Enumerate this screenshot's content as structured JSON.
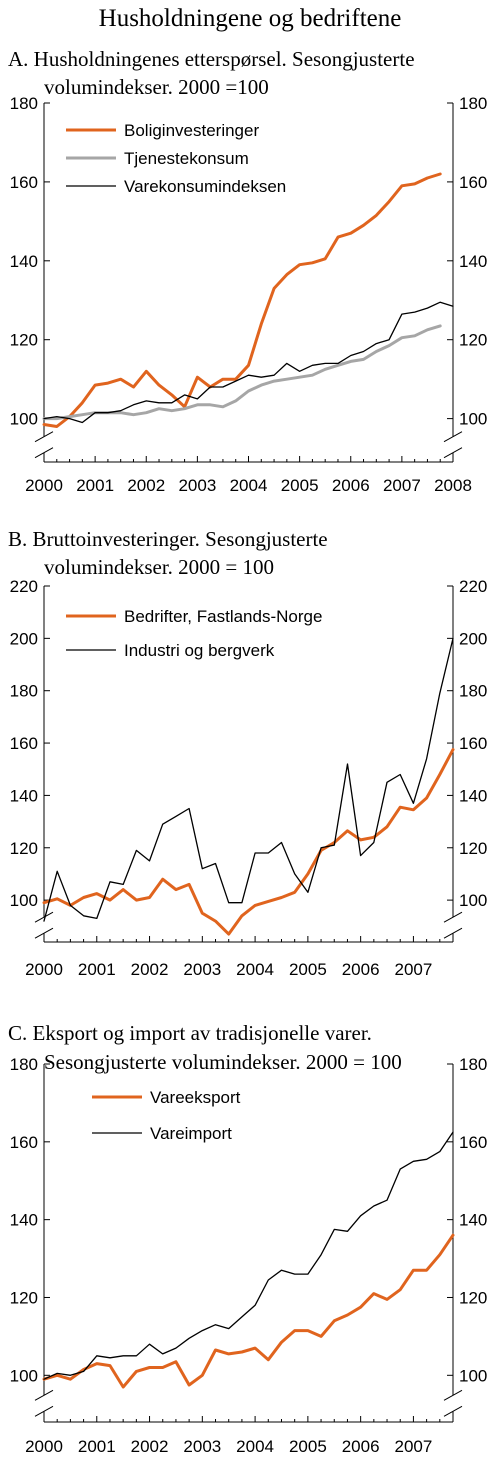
{
  "figure_title": "Husholdningene og bedriftene",
  "colors": {
    "orange": "#e0641e",
    "gray": "#a6a6a6",
    "black": "#000000"
  },
  "chart_data": [
    {
      "type": "line",
      "title_lines": [
        "A.  Husholdningenes etterspørsel. Sesongjusterte",
        "volumindekser. 2000 =100"
      ],
      "x_tick_labels": [
        "2000",
        "2001",
        "2002",
        "2003",
        "2004",
        "2005",
        "2006",
        "2007",
        "2008"
      ],
      "x_ticks": [
        2000,
        2001,
        2002,
        2003,
        2004,
        2005,
        2006,
        2007,
        2008
      ],
      "xlim": [
        2000,
        2008
      ],
      "ylim": [
        90,
        180
      ],
      "y_ticks": [
        100,
        120,
        140,
        160,
        180
      ],
      "axis_break": true,
      "legend_position": "top-left",
      "series": [
        {
          "name": "Boliginvesteringer",
          "color": "#e0641e",
          "width": 3,
          "x": [
            2000,
            2000.25,
            2000.5,
            2000.75,
            2001,
            2001.25,
            2001.5,
            2001.75,
            2002,
            2002.25,
            2002.5,
            2002.75,
            2003,
            2003.25,
            2003.5,
            2003.75,
            2004,
            2004.25,
            2004.5,
            2004.75,
            2005,
            2005.25,
            2005.5,
            2005.75,
            2006,
            2006.25,
            2006.5,
            2006.75,
            2007,
            2007.25,
            2007.5,
            2007.75
          ],
          "y": [
            98.5,
            98,
            100.5,
            104,
            108.5,
            109,
            110,
            108,
            112,
            108.5,
            106,
            103,
            110.5,
            108,
            110,
            110,
            113.5,
            124,
            133,
            136.5,
            139,
            139.5,
            140.5,
            146,
            147,
            149,
            151.5,
            155,
            159,
            159.5,
            161,
            162
          ]
        },
        {
          "name": "Tjenestekonsum",
          "color": "#a6a6a6",
          "width": 3,
          "x": [
            2000,
            2000.25,
            2000.5,
            2000.75,
            2001,
            2001.25,
            2001.5,
            2001.75,
            2002,
            2002.25,
            2002.5,
            2002.75,
            2003,
            2003.25,
            2003.5,
            2003.75,
            2004,
            2004.25,
            2004.5,
            2004.75,
            2005,
            2005.25,
            2005.5,
            2005.75,
            2006,
            2006.25,
            2006.5,
            2006.75,
            2007,
            2007.25,
            2007.5,
            2007.75
          ],
          "y": [
            100,
            100,
            100.5,
            101,
            101.5,
            101.5,
            101.5,
            101,
            101.5,
            102.5,
            102,
            102.5,
            103.5,
            103.5,
            103,
            104.5,
            107,
            108.5,
            109.5,
            110,
            110.5,
            111,
            112.5,
            113.5,
            114.5,
            115,
            117,
            118.5,
            120.5,
            121,
            122.5,
            123.5
          ]
        },
        {
          "name": "Varekonsumindeksen",
          "color": "#000000",
          "width": 1.3,
          "x": [
            2000,
            2000.25,
            2000.5,
            2000.75,
            2001,
            2001.25,
            2001.5,
            2001.75,
            2002,
            2002.25,
            2002.5,
            2002.75,
            2003,
            2003.25,
            2003.5,
            2003.75,
            2004,
            2004.25,
            2004.5,
            2004.75,
            2005,
            2005.25,
            2005.5,
            2005.75,
            2006,
            2006.25,
            2006.5,
            2006.75,
            2007,
            2007.25,
            2007.5,
            2007.75,
            2008
          ],
          "y": [
            100,
            100.5,
            100,
            99,
            101.5,
            101.5,
            102,
            103.5,
            104.5,
            104,
            104,
            106,
            105,
            108,
            108,
            109.5,
            111,
            110.5,
            111,
            114,
            112,
            113.5,
            114,
            114,
            116,
            117,
            119,
            120,
            126.5,
            127,
            128,
            129.5,
            128.5
          ]
        }
      ]
    },
    {
      "type": "line",
      "title_lines": [
        "B.  Bruttoinvesteringer. Sesongjusterte",
        "volumindekser. 2000 = 100"
      ],
      "x_tick_labels": [
        "2000",
        "2001",
        "2002",
        "2003",
        "2004",
        "2005",
        "2006",
        "2007"
      ],
      "x_ticks": [
        2000,
        2001,
        2002,
        2003,
        2004,
        2005,
        2006,
        2007
      ],
      "xlim": [
        2000,
        2007.75
      ],
      "ylim": [
        85,
        220
      ],
      "y_ticks": [
        100,
        120,
        140,
        160,
        180,
        200,
        220
      ],
      "axis_break": true,
      "legend_position": "top-left",
      "series": [
        {
          "name": "Bedrifter, Fastlands-Norge",
          "color": "#e0641e",
          "width": 3,
          "x": [
            2000,
            2000.25,
            2000.5,
            2000.75,
            2001,
            2001.25,
            2001.5,
            2001.75,
            2002,
            2002.25,
            2002.5,
            2002.75,
            2003,
            2003.25,
            2003.5,
            2003.75,
            2004,
            2004.25,
            2004.5,
            2004.75,
            2005,
            2005.25,
            2005.5,
            2005.75,
            2006,
            2006.25,
            2006.5,
            2006.75,
            2007,
            2007.25,
            2007.5,
            2007.75
          ],
          "y": [
            99,
            100.5,
            98,
            101,
            102.5,
            100,
            104,
            100,
            101,
            108,
            104,
            106,
            95,
            92,
            87,
            94,
            98,
            99.5,
            101,
            103,
            110,
            119,
            122,
            126.5,
            123,
            124,
            128,
            135.5,
            134.5,
            139,
            148,
            157.5
          ]
        },
        {
          "name": "Industri og bergverk",
          "color": "#000000",
          "width": 1.3,
          "x": [
            2000,
            2000.25,
            2000.5,
            2000.75,
            2001,
            2001.25,
            2001.5,
            2001.75,
            2002,
            2002.25,
            2002.5,
            2002.75,
            2003,
            2003.25,
            2003.5,
            2003.75,
            2004,
            2004.25,
            2004.5,
            2004.75,
            2005,
            2005.25,
            2005.5,
            2005.75,
            2006,
            2006.25,
            2006.5,
            2006.75,
            2007,
            2007.25,
            2007.5,
            2007.75
          ],
          "y": [
            92,
            111,
            98,
            94,
            93,
            107,
            106,
            119,
            115,
            129,
            132,
            135,
            112,
            114,
            99,
            99,
            118,
            118,
            122,
            110,
            103,
            120,
            121,
            152,
            117,
            122,
            145,
            148,
            137,
            154,
            179,
            200
          ]
        }
      ]
    },
    {
      "type": "line",
      "title_lines": [
        "C.  Eksport og import av tradisjonelle varer.",
        "Sesongjusterte volumindekser. 2000 = 100"
      ],
      "x_tick_labels": [
        "2000",
        "2001",
        "2002",
        "2003",
        "2004",
        "2005",
        "2006",
        "2007"
      ],
      "x_ticks": [
        2000,
        2001,
        2002,
        2003,
        2004,
        2005,
        2006,
        2007
      ],
      "xlim": [
        2000,
        2007.75
      ],
      "ylim": [
        90,
        180
      ],
      "y_ticks": [
        100,
        120,
        140,
        160,
        180
      ],
      "axis_break": true,
      "legend_position": "top-left",
      "series": [
        {
          "name": "Vareeksport",
          "color": "#e0641e",
          "width": 3,
          "x": [
            2000,
            2000.25,
            2000.5,
            2000.75,
            2001,
            2001.25,
            2001.5,
            2001.75,
            2002,
            2002.25,
            2002.5,
            2002.75,
            2003,
            2003.25,
            2003.5,
            2003.75,
            2004,
            2004.25,
            2004.5,
            2004.75,
            2005,
            2005.25,
            2005.5,
            2005.75,
            2006,
            2006.25,
            2006.5,
            2006.75,
            2007,
            2007.25,
            2007.5,
            2007.75
          ],
          "y": [
            99,
            100,
            99,
            101.5,
            103,
            102.5,
            97,
            101,
            102,
            102,
            103.5,
            97.5,
            100,
            106.5,
            105.5,
            106,
            107,
            104,
            108.5,
            111.5,
            111.5,
            110,
            114,
            115.5,
            117.5,
            121,
            119.5,
            122,
            127,
            127,
            131,
            136
          ]
        },
        {
          "name": "Vareimport",
          "color": "#000000",
          "width": 1.3,
          "x": [
            2000,
            2000.25,
            2000.5,
            2000.75,
            2001,
            2001.25,
            2001.5,
            2001.75,
            2002,
            2002.25,
            2002.5,
            2002.75,
            2003,
            2003.25,
            2003.5,
            2003.75,
            2004,
            2004.25,
            2004.5,
            2004.75,
            2005,
            2005.25,
            2005.5,
            2005.75,
            2006,
            2006.25,
            2006.5,
            2006.75,
            2007,
            2007.25,
            2007.5,
            2007.75
          ],
          "y": [
            99,
            100.5,
            100,
            101,
            105,
            104.5,
            105,
            105,
            108,
            105.5,
            107,
            109.5,
            111.5,
            113,
            112,
            115,
            118,
            124.5,
            127,
            126,
            126,
            131,
            137.5,
            137,
            141,
            143.5,
            145,
            153,
            155,
            155.5,
            157.5,
            162.5
          ]
        }
      ]
    }
  ]
}
